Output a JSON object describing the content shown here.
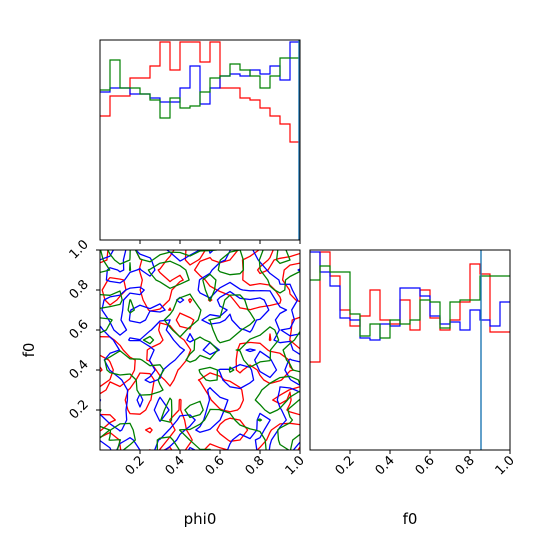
{
  "chart_data": [
    {
      "panel": "phi0-marginal",
      "type": "histogram",
      "xlim": [
        0,
        1
      ],
      "xticks": [
        0.2,
        0.4,
        0.6,
        0.8,
        1.0
      ],
      "xtick_labels_shown": false,
      "bin_edges": [
        0.0,
        0.05,
        0.1,
        0.15,
        0.2,
        0.25,
        0.3,
        0.35,
        0.4,
        0.45,
        0.5,
        0.55,
        0.6,
        0.65,
        0.7,
        0.75,
        0.8,
        0.85,
        0.9,
        0.95,
        1.0
      ],
      "ylim": [
        0,
        1.0
      ],
      "series": [
        {
          "color": "#ff0000",
          "values": [
            0.62,
            0.72,
            0.72,
            0.81,
            0.81,
            0.87,
            0.99,
            0.85,
            0.99,
            0.99,
            0.89,
            0.99,
            0.76,
            0.76,
            0.71,
            0.7,
            0.66,
            0.62,
            0.58,
            0.49
          ]
        },
        {
          "color": "#0000ff",
          "values": [
            0.74,
            0.76,
            0.76,
            0.73,
            0.73,
            0.71,
            0.69,
            0.69,
            0.76,
            0.87,
            0.68,
            0.76,
            0.82,
            0.83,
            0.82,
            0.85,
            0.83,
            0.87,
            0.8,
            0.99
          ]
        },
        {
          "color": "#008000",
          "values": [
            0.75,
            0.9,
            0.76,
            0.76,
            0.73,
            0.7,
            0.61,
            0.71,
            0.66,
            0.67,
            0.74,
            0.81,
            0.82,
            0.88,
            0.85,
            0.82,
            0.76,
            0.82,
            0.91,
            0.91
          ]
        }
      ],
      "vline": {
        "x": 0.995,
        "color": "#1f77b4"
      }
    },
    {
      "panel": "f0-vs-phi0",
      "type": "contour",
      "xlim": [
        0,
        1
      ],
      "ylim": [
        0,
        1
      ],
      "xticks": [
        0.2,
        0.4,
        0.6,
        0.8,
        1.0
      ],
      "yticks": [
        0.2,
        0.4,
        0.6,
        0.8,
        1.0
      ],
      "x_tick_labels": [
        "0.2",
        "0.4",
        "0.6",
        "0.8",
        "1.0"
      ],
      "y_tick_labels": [
        "0.2",
        "0.4",
        "0.6",
        "0.8",
        "1.0"
      ],
      "xlabel": "phi0",
      "ylabel": "f0",
      "series_colors": [
        "#ff0000",
        "#0000ff",
        "#008000"
      ]
    },
    {
      "panel": "f0-marginal",
      "type": "histogram",
      "xlim": [
        0,
        1
      ],
      "xticks": [
        0.2,
        0.4,
        0.6,
        0.8,
        1.0
      ],
      "x_tick_labels": [
        "0.2",
        "0.4",
        "0.6",
        "0.8",
        "1.0"
      ],
      "xlabel": "f0",
      "bin_edges": [
        0.0,
        0.05,
        0.1,
        0.15,
        0.2,
        0.25,
        0.3,
        0.35,
        0.4,
        0.45,
        0.5,
        0.55,
        0.6,
        0.65,
        0.7,
        0.75,
        0.8,
        0.85,
        0.9,
        0.95,
        1.0
      ],
      "ylim": [
        0,
        1.0
      ],
      "series": [
        {
          "color": "#ff0000",
          "values": [
            0.44,
            0.99,
            0.87,
            0.7,
            0.62,
            0.67,
            0.8,
            0.65,
            0.63,
            0.75,
            0.6,
            0.8,
            0.66,
            0.6,
            0.65,
            0.74,
            0.93,
            0.88,
            0.59,
            0.59
          ]
        },
        {
          "color": "#0000ff",
          "values": [
            0.99,
            0.89,
            0.82,
            0.66,
            0.65,
            0.56,
            0.55,
            0.63,
            0.62,
            0.81,
            0.81,
            0.77,
            0.67,
            0.63,
            0.64,
            0.6,
            0.7,
            0.65,
            0.62,
            0.74
          ]
        },
        {
          "color": "#008000",
          "values": [
            0.85,
            0.92,
            0.89,
            0.89,
            0.68,
            0.57,
            0.63,
            0.56,
            0.65,
            0.63,
            0.65,
            0.75,
            0.74,
            0.61,
            0.74,
            0.75,
            0.75,
            0.87,
            0.87,
            0.87
          ]
        }
      ],
      "vline": {
        "x": 0.855,
        "color": "#1f77b4"
      }
    }
  ]
}
